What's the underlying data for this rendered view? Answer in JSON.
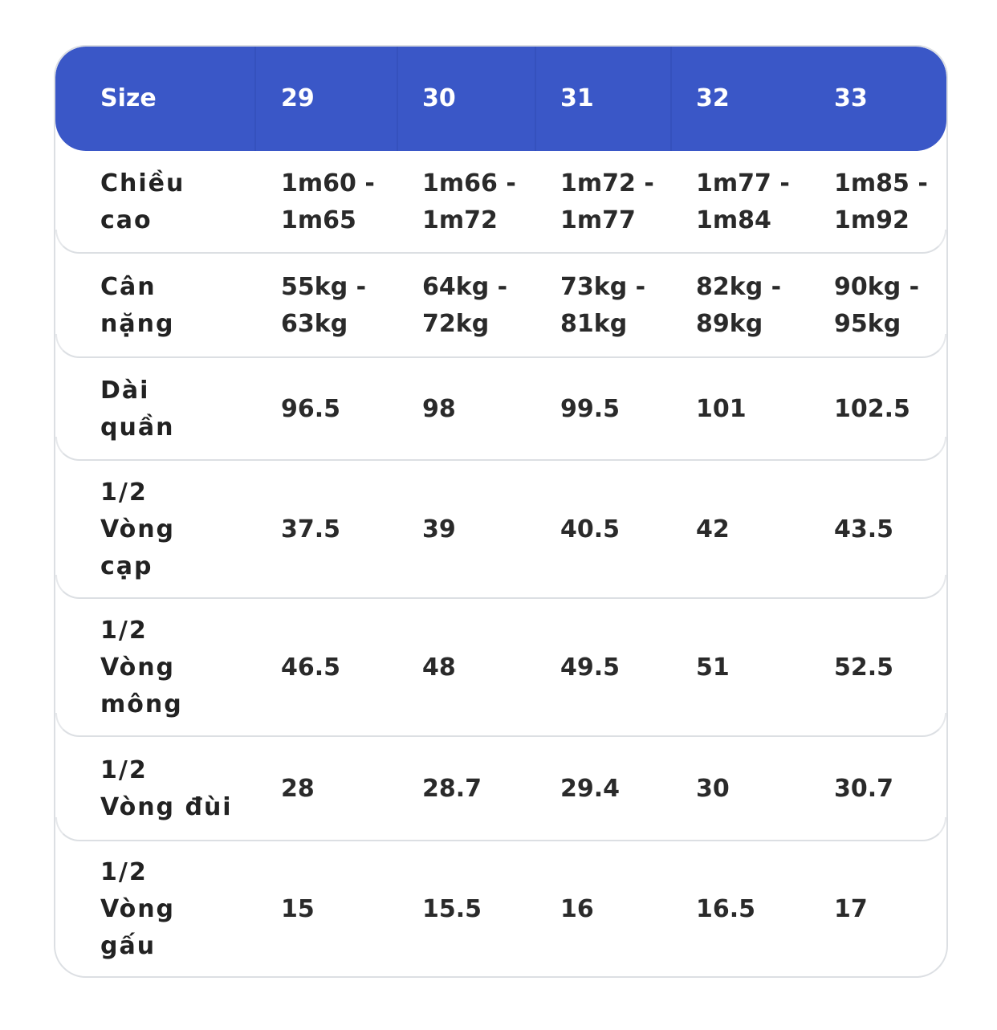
{
  "header": {
    "label": "Size",
    "sizes": [
      "29",
      "30",
      "31",
      "32",
      "33"
    ]
  },
  "rows": [
    {
      "label": [
        "Chiều",
        "cao"
      ],
      "values": [
        [
          "1m60 -",
          "1m65"
        ],
        [
          "1m66 -",
          "1m72"
        ],
        [
          "1m72 -",
          "1m77"
        ],
        [
          "1m77 -",
          "1m84"
        ],
        [
          "1m85 -",
          "1m92"
        ]
      ]
    },
    {
      "label": [
        "Cân",
        "nặng"
      ],
      "values": [
        [
          "55kg -",
          "63kg"
        ],
        [
          "64kg -",
          "72kg"
        ],
        [
          "73kg -",
          "81kg"
        ],
        [
          "82kg -",
          "89kg"
        ],
        [
          "90kg -",
          "95kg"
        ]
      ]
    },
    {
      "label": [
        "Dài",
        "quần"
      ],
      "values": [
        [
          "96.5"
        ],
        [
          "98"
        ],
        [
          "99.5"
        ],
        [
          "101"
        ],
        [
          "102.5"
        ]
      ]
    },
    {
      "label": [
        "1/2",
        "Vòng",
        "cạp"
      ],
      "values": [
        [
          "37.5"
        ],
        [
          "39"
        ],
        [
          "40.5"
        ],
        [
          "42"
        ],
        [
          "43.5"
        ]
      ]
    },
    {
      "label": [
        "1/2",
        "Vòng",
        "mông"
      ],
      "values": [
        [
          "46.5"
        ],
        [
          "48"
        ],
        [
          "49.5"
        ],
        [
          "51"
        ],
        [
          "52.5"
        ]
      ]
    },
    {
      "label": [
        "1/2",
        "Vòng đùi"
      ],
      "values": [
        [
          "28"
        ],
        [
          "28.7"
        ],
        [
          "29.4"
        ],
        [
          "30"
        ],
        [
          "30.7"
        ]
      ]
    },
    {
      "label": [
        "1/2",
        "Vòng",
        "gấu"
      ],
      "values": [
        [
          "15"
        ],
        [
          "15.5"
        ],
        [
          "16"
        ],
        [
          "16.5"
        ],
        [
          "17"
        ]
      ]
    }
  ],
  "colors": {
    "header_bg": "#3a57c7",
    "header_text": "#ffffff",
    "body_text": "#2a2a2a",
    "border": "#dcdfe3"
  }
}
